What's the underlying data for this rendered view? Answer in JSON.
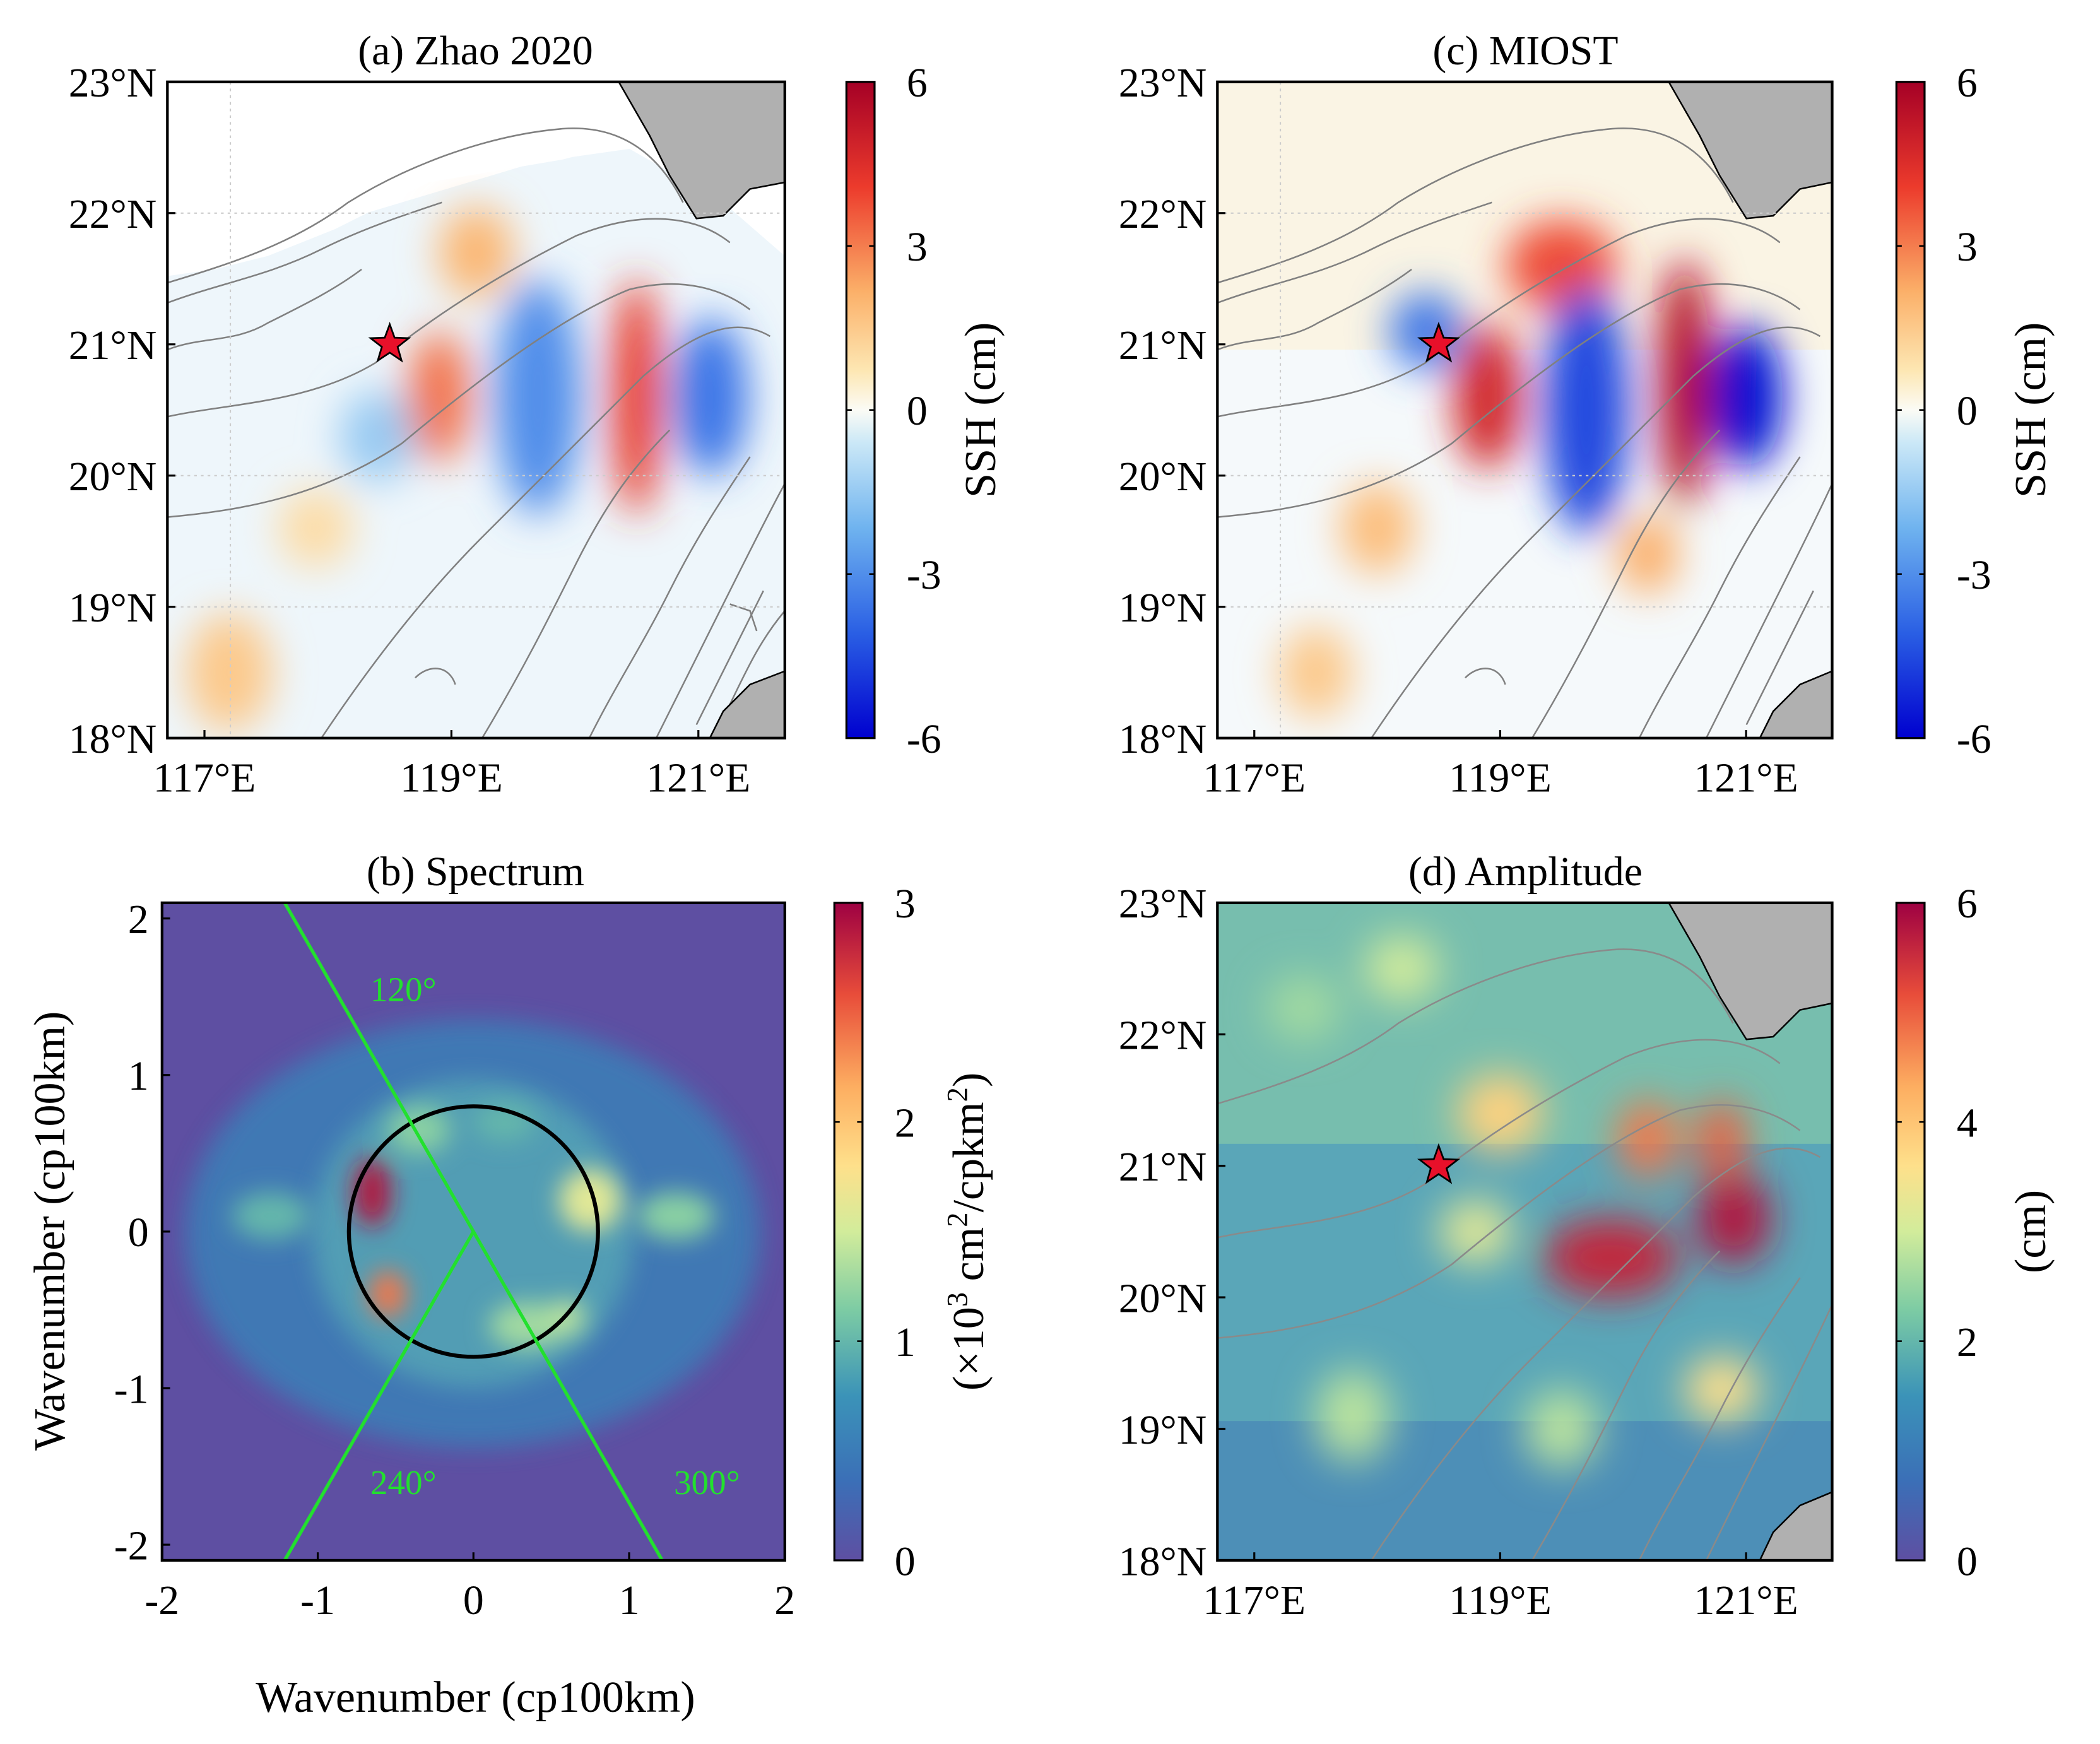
{
  "figure": {
    "panels": [
      {
        "id": "a",
        "title": "(a) Zhao 2020"
      },
      {
        "id": "b",
        "title": "(b) Spectrum"
      },
      {
        "id": "c",
        "title": "(c) MIOST"
      },
      {
        "id": "d",
        "title": "(d) Amplitude"
      }
    ]
  },
  "chart_data": [
    {
      "type": "heatmap",
      "panel": "a",
      "title": "(a) Zhao 2020",
      "x_ticks": [
        "117°E",
        "119°E",
        "121°E"
      ],
      "x_tick_values": [
        117,
        119,
        121
      ],
      "y_ticks": [
        "18°N",
        "19°N",
        "20°N",
        "21°N",
        "22°N",
        "23°N"
      ],
      "y_tick_values": [
        18,
        19,
        20,
        21,
        22,
        23
      ],
      "xlim": [
        116.7,
        121.7
      ],
      "ylim": [
        18,
        23
      ],
      "colorbar": {
        "label": "SSH (cm)",
        "ticks": [
          "-6",
          "-3",
          "0",
          "3",
          "6"
        ],
        "tick_values": [
          -6,
          -3,
          0,
          3,
          6
        ],
        "range": [
          -6,
          6
        ],
        "colormap": "RdYlBu_r"
      },
      "marker": {
        "symbol": "star",
        "lon": 118.5,
        "lat": 21,
        "color": "#e8102a"
      },
      "blobs": [
        {
          "lon": 118.9,
          "lat": 20.6,
          "value": 3.2,
          "rx": 0.25,
          "ry": 0.5
        },
        {
          "lon": 120.5,
          "lat": 20.6,
          "value": 4.2,
          "rx": 0.2,
          "ry": 0.9
        },
        {
          "lon": 119.2,
          "lat": 21.7,
          "value": 2.0,
          "rx": 0.3,
          "ry": 0.35
        },
        {
          "lon": 119.7,
          "lat": 20.6,
          "value": -3.0,
          "rx": 0.35,
          "ry": 0.9
        },
        {
          "lon": 121.1,
          "lat": 20.6,
          "value": -3.6,
          "rx": 0.3,
          "ry": 0.6
        },
        {
          "lon": 118.4,
          "lat": 20.3,
          "value": -1.5,
          "rx": 0.3,
          "ry": 0.35
        },
        {
          "lon": 117.2,
          "lat": 18.5,
          "value": 1.5,
          "rx": 0.35,
          "ry": 0.45
        },
        {
          "lon": 117.9,
          "lat": 19.6,
          "value": 1.0,
          "rx": 0.3,
          "ry": 0.3
        }
      ]
    },
    {
      "type": "heatmap",
      "panel": "b",
      "title": "(b) Spectrum",
      "xlabel": "Wavenumber (cp100km)",
      "ylabel": "Wavenumber (cp100km)",
      "x_ticks": [
        "-2",
        "-1",
        "0",
        "1",
        "2"
      ],
      "x_tick_values": [
        -2,
        -1,
        0,
        1,
        2
      ],
      "y_ticks": [
        "-2",
        "-1",
        "0",
        "1",
        "2"
      ],
      "y_tick_values": [
        -2,
        -1,
        0,
        1,
        2
      ],
      "xlim": [
        -2,
        2
      ],
      "ylim": [
        -2.1,
        2.1
      ],
      "colorbar": {
        "label_prefix": "(×10",
        "label_sup1": "3",
        "label_mid": " cm",
        "label_sup2": "2",
        "label_mid2": "/cpkm",
        "label_sup3": "2",
        "label_suffix": ")",
        "ticks": [
          "0",
          "1",
          "2",
          "3"
        ],
        "tick_values": [
          0,
          1,
          2,
          3
        ],
        "range": [
          0,
          3
        ],
        "colormap": "Spectral_r"
      },
      "circle_radius": 0.8,
      "direction_lines": [
        {
          "label": "120°",
          "angle_deg": 120
        },
        {
          "label": "240°",
          "angle_deg": 240
        },
        {
          "label": "300°",
          "angle_deg": 300
        }
      ],
      "blobs": [
        {
          "x": -0.65,
          "y": 0.25,
          "value": 2.9,
          "rx": 0.12,
          "ry": 0.22
        },
        {
          "x": -0.55,
          "y": -0.4,
          "value": 2.4,
          "rx": 0.12,
          "ry": 0.15
        },
        {
          "x": 0.75,
          "y": 0.2,
          "value": 1.6,
          "rx": 0.2,
          "ry": 0.2
        },
        {
          "x": -0.35,
          "y": 0.65,
          "value": 1.2,
          "rx": 0.2,
          "ry": 0.15
        },
        {
          "x": 0.35,
          "y": -0.6,
          "value": 1.3,
          "rx": 0.25,
          "ry": 0.15
        },
        {
          "x": 1.3,
          "y": 0.1,
          "value": 1.2,
          "rx": 0.25,
          "ry": 0.15
        },
        {
          "x": -1.3,
          "y": 0.1,
          "value": 1.0,
          "rx": 0.25,
          "ry": 0.15
        },
        {
          "x": 0.6,
          "y": -0.55,
          "value": 1.4,
          "rx": 0.12,
          "ry": 0.12
        },
        {
          "x": 0.2,
          "y": 0.7,
          "value": 1.0,
          "rx": 0.2,
          "ry": 0.12
        }
      ]
    },
    {
      "type": "heatmap",
      "panel": "c",
      "title": "(c) MIOST",
      "x_ticks": [
        "117°E",
        "119°E",
        "121°E"
      ],
      "x_tick_values": [
        117,
        119,
        121
      ],
      "y_ticks": [
        "18°N",
        "19°N",
        "20°N",
        "21°N",
        "22°N",
        "23°N"
      ],
      "y_tick_values": [
        18,
        19,
        20,
        21,
        22,
        23
      ],
      "xlim": [
        116.7,
        121.7
      ],
      "ylim": [
        18,
        23
      ],
      "colorbar": {
        "label": "SSH (cm)",
        "ticks": [
          "-6",
          "-3",
          "0",
          "3",
          "6"
        ],
        "tick_values": [
          -6,
          -3,
          0,
          3,
          6
        ],
        "range": [
          -6,
          6
        ],
        "colormap": "RdYlBu_r"
      },
      "marker": {
        "symbol": "star",
        "lon": 118.5,
        "lat": 21,
        "color": "#e8102a"
      },
      "blobs": [
        {
          "lon": 118.9,
          "lat": 20.6,
          "value": 4.8,
          "rx": 0.28,
          "ry": 0.55
        },
        {
          "lon": 120.5,
          "lat": 20.7,
          "value": 5.6,
          "rx": 0.22,
          "ry": 0.95
        },
        {
          "lon": 119.5,
          "lat": 21.6,
          "value": 3.8,
          "rx": 0.45,
          "ry": 0.35
        },
        {
          "lon": 119.7,
          "lat": 20.5,
          "value": -4.5,
          "rx": 0.35,
          "ry": 0.95
        },
        {
          "lon": 121.0,
          "lat": 20.6,
          "value": -5.8,
          "rx": 0.3,
          "ry": 0.55
        },
        {
          "lon": 118.4,
          "lat": 21.1,
          "value": -3.5,
          "rx": 0.3,
          "ry": 0.3
        },
        {
          "lon": 118.0,
          "lat": 19.6,
          "value": 1.8,
          "rx": 0.3,
          "ry": 0.35
        },
        {
          "lon": 120.2,
          "lat": 19.4,
          "value": 2.2,
          "rx": 0.25,
          "ry": 0.3
        },
        {
          "lon": 117.5,
          "lat": 18.5,
          "value": 1.5,
          "rx": 0.3,
          "ry": 0.35
        }
      ]
    },
    {
      "type": "heatmap",
      "panel": "d",
      "title": "(d) Amplitude",
      "x_ticks": [
        "117°E",
        "119°E",
        "121°E"
      ],
      "x_tick_values": [
        117,
        119,
        121
      ],
      "y_ticks": [
        "18°N",
        "19°N",
        "20°N",
        "21°N",
        "22°N",
        "23°N"
      ],
      "y_tick_values": [
        18,
        19,
        20,
        21,
        22,
        23
      ],
      "xlim": [
        116.7,
        121.7
      ],
      "ylim": [
        18,
        23
      ],
      "colorbar": {
        "label": "(cm)",
        "ticks": [
          "0",
          "2",
          "4",
          "6"
        ],
        "tick_values": [
          0,
          2,
          4,
          6
        ],
        "range": [
          0,
          6
        ],
        "colormap": "Spectral_r"
      },
      "marker": {
        "symbol": "star",
        "lon": 118.5,
        "lat": 21,
        "color": "#e8102a"
      },
      "blobs": [
        {
          "lon": 119.9,
          "lat": 20.3,
          "value": 5.6,
          "rx": 0.55,
          "ry": 0.3
        },
        {
          "lon": 120.9,
          "lat": 20.6,
          "value": 5.8,
          "rx": 0.3,
          "ry": 0.35
        },
        {
          "lon": 120.2,
          "lat": 21.2,
          "value": 4.8,
          "rx": 0.25,
          "ry": 0.3
        },
        {
          "lon": 120.8,
          "lat": 21.2,
          "value": 5.0,
          "rx": 0.2,
          "ry": 0.3
        },
        {
          "lon": 119.0,
          "lat": 21.4,
          "value": 3.8,
          "rx": 0.35,
          "ry": 0.3
        },
        {
          "lon": 118.8,
          "lat": 20.5,
          "value": 3.2,
          "rx": 0.3,
          "ry": 0.25
        },
        {
          "lon": 120.8,
          "lat": 19.3,
          "value": 3.6,
          "rx": 0.3,
          "ry": 0.25
        },
        {
          "lon": 117.8,
          "lat": 19.1,
          "value": 2.8,
          "rx": 0.3,
          "ry": 0.35
        },
        {
          "lon": 117.4,
          "lat": 22.2,
          "value": 2.6,
          "rx": 0.3,
          "ry": 0.25
        },
        {
          "lon": 118.2,
          "lat": 22.5,
          "value": 3.0,
          "rx": 0.3,
          "ry": 0.25
        },
        {
          "lon": 119.5,
          "lat": 19.0,
          "value": 2.8,
          "rx": 0.3,
          "ry": 0.3
        }
      ]
    }
  ]
}
